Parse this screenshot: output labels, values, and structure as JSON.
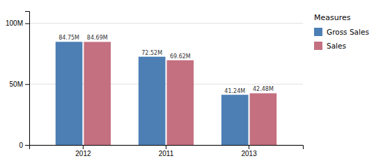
{
  "chart_data": {
    "type": "bar",
    "categories": [
      "2012",
      "2011",
      "2013"
    ],
    "series": [
      {
        "name": "Gross Sales",
        "color": "#4d7fb5",
        "values": [
          84.75,
          72.52,
          41.24
        ],
        "value_labels": [
          "84.75M",
          "72.52M",
          "41.24M"
        ]
      },
      {
        "name": "Sales",
        "color": "#c47080",
        "values": [
          84.69,
          69.62,
          42.48
        ],
        "value_labels": [
          "84.69M",
          "69.62M",
          "42.48M"
        ]
      }
    ],
    "ylim": [
      0,
      110
    ],
    "yticks": [
      0,
      {
        "value": 50,
        "label": "50M"
      },
      {
        "value": 100,
        "label": "100M"
      }
    ],
    "grid": true,
    "data_labels": true,
    "legend": "right",
    "legend_title": "Measures"
  }
}
